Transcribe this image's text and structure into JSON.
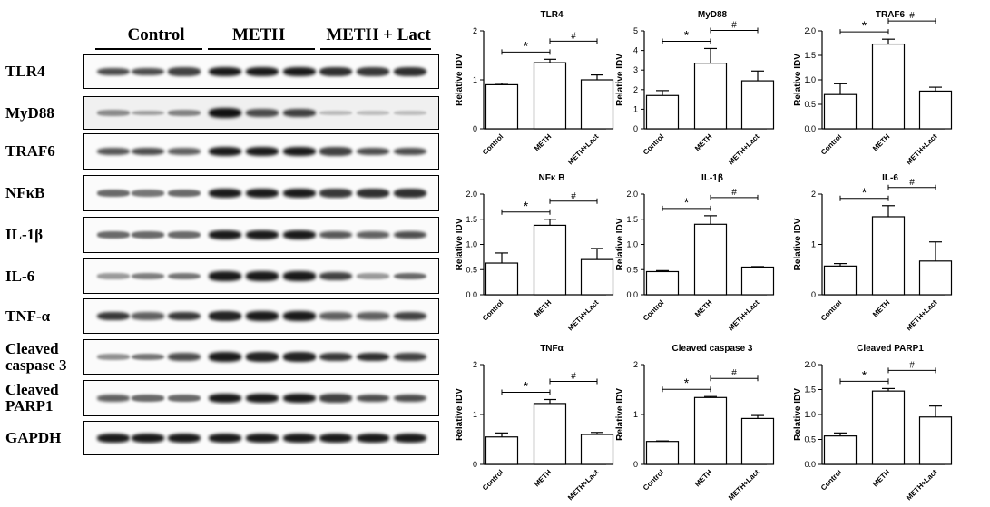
{
  "blot": {
    "groups": [
      "Control",
      "METH",
      "METH + Lact"
    ],
    "rows": [
      {
        "label": "TLR4",
        "intensity": [
          0.7,
          0.7,
          0.75,
          0.95,
          0.95,
          0.95,
          0.85,
          0.8,
          0.85
        ]
      },
      {
        "label": "MyD88",
        "intensity": [
          0.35,
          0.25,
          0.4,
          1.0,
          0.7,
          0.75,
          0.1,
          0.08,
          0.08
        ]
      },
      {
        "label": "TRAF6",
        "intensity": [
          0.65,
          0.7,
          0.6,
          0.95,
          0.95,
          0.95,
          0.75,
          0.7,
          0.7
        ]
      },
      {
        "label": "NFκB",
        "intensity": [
          0.55,
          0.5,
          0.55,
          0.95,
          0.95,
          0.95,
          0.8,
          0.85,
          0.85
        ]
      },
      {
        "label": "IL-1β",
        "intensity": [
          0.55,
          0.55,
          0.55,
          0.95,
          0.95,
          0.95,
          0.65,
          0.6,
          0.7
        ]
      },
      {
        "label": "IL-6",
        "intensity": [
          0.3,
          0.45,
          0.5,
          0.95,
          0.95,
          0.95,
          0.75,
          0.3,
          0.55
        ]
      },
      {
        "label": "TNF-α",
        "intensity": [
          0.8,
          0.6,
          0.8,
          0.9,
          0.95,
          0.95,
          0.6,
          0.6,
          0.75
        ]
      },
      {
        "label": "Cleaved\ncaspase 3",
        "intensity": [
          0.35,
          0.5,
          0.7,
          0.95,
          0.9,
          0.9,
          0.8,
          0.85,
          0.75
        ]
      },
      {
        "label": "Cleaved\nPARP1",
        "intensity": [
          0.6,
          0.55,
          0.55,
          0.95,
          0.95,
          0.95,
          0.75,
          0.7,
          0.7
        ]
      },
      {
        "label": "GAPDH",
        "intensity": [
          0.95,
          0.95,
          0.95,
          0.95,
          0.95,
          0.95,
          0.95,
          0.95,
          0.95
        ]
      }
    ]
  },
  "chart_data": [
    {
      "type": "bar",
      "title": "TLR4",
      "ylabel": "Relative IDV",
      "categories": [
        "Control",
        "METH",
        "METH+Lact"
      ],
      "values": [
        0.9,
        1.35,
        1.0
      ],
      "errors": [
        0.03,
        0.07,
        0.1
      ],
      "ylim": [
        0,
        2
      ],
      "yticks": [
        "0",
        "1",
        "2"
      ],
      "star": "*",
      "hash": "#"
    },
    {
      "type": "bar",
      "title": "MyD88",
      "ylabel": "Relative IDV",
      "categories": [
        "Control",
        "METH",
        "METH+Lact"
      ],
      "values": [
        1.7,
        3.35,
        2.45
      ],
      "errors": [
        0.25,
        0.75,
        0.5
      ],
      "ylim": [
        0,
        5
      ],
      "yticks": [
        "0",
        "1",
        "2",
        "3",
        "4",
        "5"
      ],
      "star": "*",
      "hash": "#"
    },
    {
      "type": "bar",
      "title": "TRAF6",
      "ylabel": "Relative IDV",
      "categories": [
        "Control",
        "METH",
        "METH+Lact"
      ],
      "values": [
        0.7,
        1.73,
        0.77
      ],
      "errors": [
        0.22,
        0.1,
        0.08
      ],
      "ylim": [
        0,
        2
      ],
      "yticks": [
        "0.0",
        "0.5",
        "1.0",
        "1.5",
        "2.0"
      ],
      "star": "*",
      "hash": "#"
    },
    {
      "type": "bar",
      "title": "NFκ B",
      "ylabel": "Relative IDV",
      "categories": [
        "Control",
        "METH",
        "METH+Lact"
      ],
      "values": [
        0.63,
        1.38,
        0.7
      ],
      "errors": [
        0.2,
        0.12,
        0.22
      ],
      "ylim": [
        0,
        2
      ],
      "yticks": [
        "0.0",
        "0.5",
        "1.0",
        "1.5",
        "2.0"
      ],
      "star": "*",
      "hash": "#"
    },
    {
      "type": "bar",
      "title": "IL-1β",
      "ylabel": "Relative IDV",
      "categories": [
        "Control",
        "METH",
        "METH+Lact"
      ],
      "values": [
        0.46,
        1.4,
        0.55
      ],
      "errors": [
        0.02,
        0.17,
        0.01
      ],
      "ylim": [
        0,
        2
      ],
      "yticks": [
        "0.0",
        "0.5",
        "1.0",
        "1.5",
        "2.0"
      ],
      "star": "*",
      "hash": "#"
    },
    {
      "type": "bar",
      "title": "IL-6",
      "ylabel": "Relative IDV",
      "categories": [
        "Control",
        "METH",
        "METH+Lact"
      ],
      "values": [
        0.57,
        1.55,
        0.67
      ],
      "errors": [
        0.05,
        0.22,
        0.38
      ],
      "ylim": [
        0,
        2
      ],
      "yticks": [
        "0",
        "1",
        "2"
      ],
      "star": "*",
      "hash": "#"
    },
    {
      "type": "bar",
      "title": "TNFα",
      "ylabel": "Relative IDV",
      "categories": [
        "Control",
        "METH",
        "METH+Lact"
      ],
      "values": [
        0.55,
        1.22,
        0.6
      ],
      "errors": [
        0.08,
        0.08,
        0.04
      ],
      "ylim": [
        0,
        2
      ],
      "yticks": [
        "0",
        "1",
        "2"
      ],
      "star": "*",
      "hash": "#"
    },
    {
      "type": "bar",
      "title": "Cleaved caspase 3",
      "ylabel": "Relative IDV",
      "categories": [
        "Control",
        "METH",
        "METH+Lact"
      ],
      "values": [
        0.46,
        1.34,
        0.92
      ],
      "errors": [
        0.01,
        0.02,
        0.06
      ],
      "ylim": [
        0,
        2
      ],
      "yticks": [
        "0",
        "1",
        "2"
      ],
      "star": "*",
      "hash": "#"
    },
    {
      "type": "bar",
      "title": "Cleaved PARP1",
      "ylabel": "Relative IDV",
      "categories": [
        "Control",
        "METH",
        "METH+Lact"
      ],
      "values": [
        0.57,
        1.47,
        0.95
      ],
      "errors": [
        0.06,
        0.05,
        0.22
      ],
      "ylim": [
        0,
        2
      ],
      "yticks": [
        "0.0",
        "0.5",
        "1.0",
        "1.5",
        "2.0"
      ],
      "star": "*",
      "hash": "#"
    }
  ]
}
